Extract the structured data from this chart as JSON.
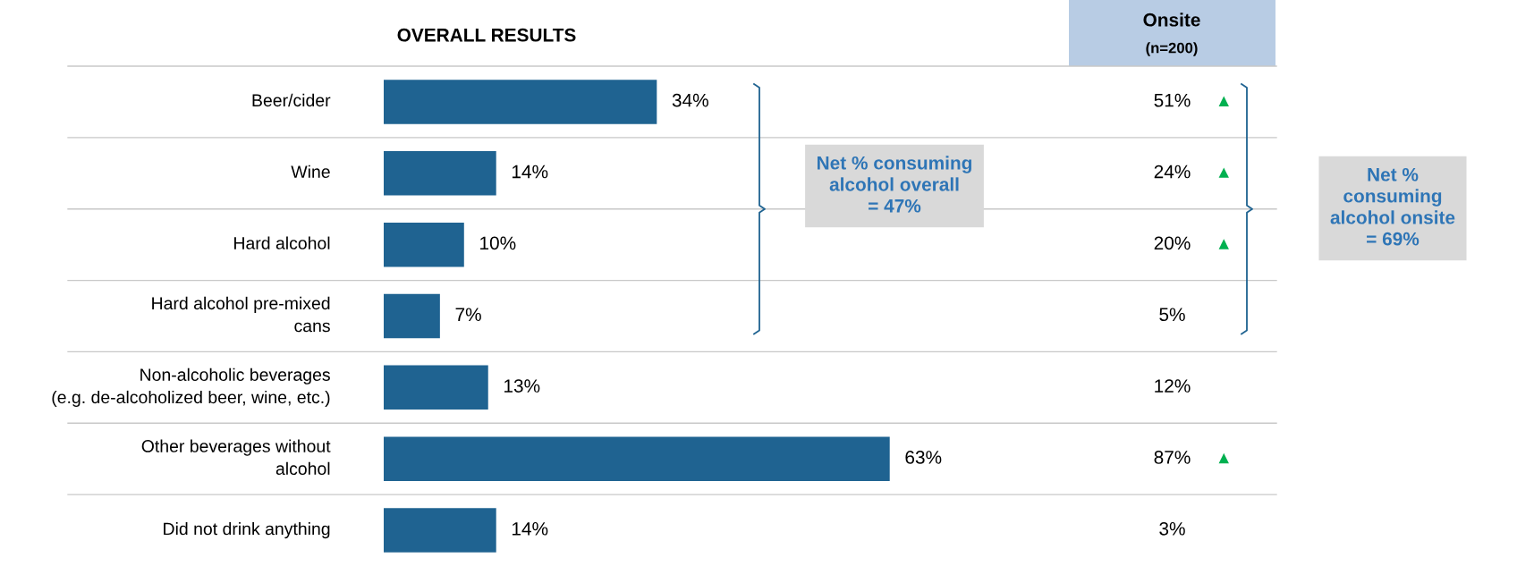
{
  "chart_data": [
    {
      "type": "bar",
      "orientation": "horizontal",
      "title": "OVERALL RESULTS",
      "categories": [
        "Beer/cider",
        "Wine",
        "Hard alcohol",
        "Hard alcohol pre-mixed\ncans",
        "Non-alcoholic beverages\n(e.g. de-alcoholized beer, wine, etc.)",
        "Other beverages without\nalcohol",
        "Did not drink anything"
      ],
      "values": [
        34,
        14,
        10,
        7,
        13,
        63,
        14
      ],
      "color": "#1f6391",
      "value_labels": [
        "34%",
        "14%",
        "10%",
        "7%",
        "13%",
        "63%",
        "14%"
      ],
      "annotations": [
        "Net % consuming\nalcohol overall\n= 47%"
      ]
    },
    {
      "type": "other",
      "title": "Onsite",
      "subtitle": "(n=200)",
      "value_labels": [
        "51%",
        "24%",
        "20%",
        "5%",
        "12%",
        "87%",
        "3%"
      ],
      "annotations": [
        {
          "text": "▲",
          "y": "Beer/cider"
        },
        {
          "text": "▲",
          "y": "Wine"
        },
        {
          "text": "▲",
          "y": "Hard alcohol"
        },
        {
          "text": "▲",
          "y": "Other beverages without\nalcohol"
        },
        "Net %\nconsuming\nalcohol onsite\n= 69%"
      ]
    }
  ]
}
